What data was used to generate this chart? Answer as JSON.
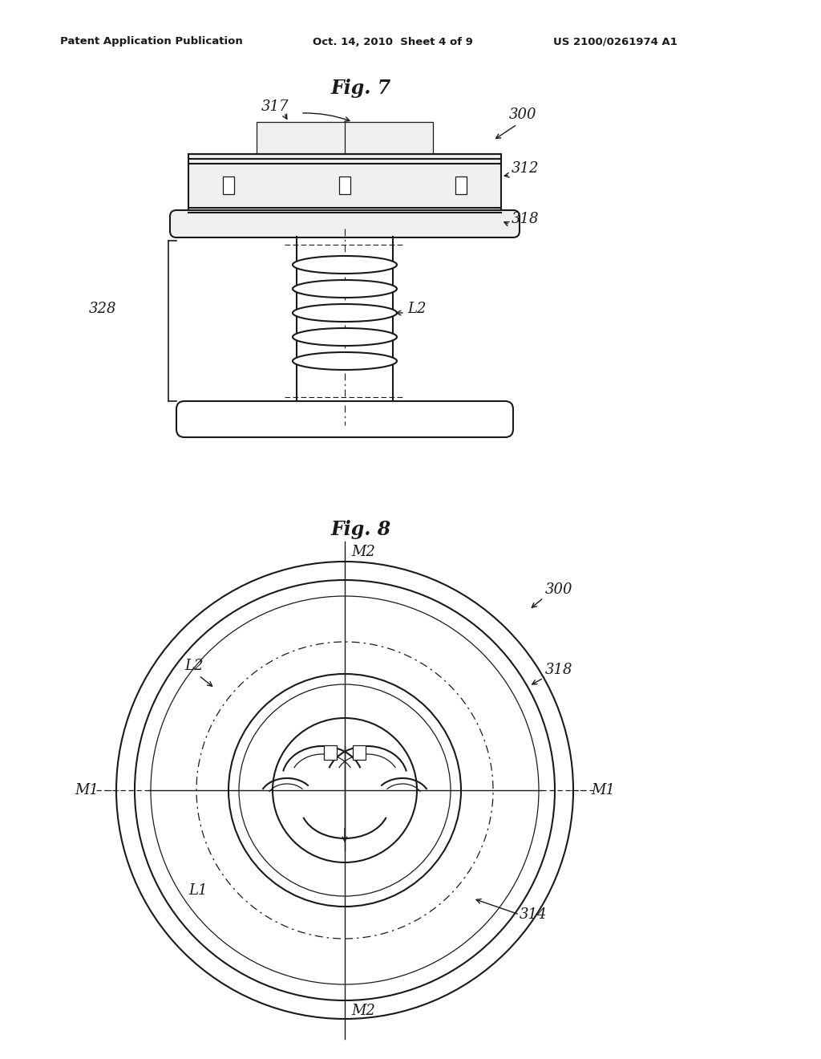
{
  "bg_color": "#ffffff",
  "line_color": "#1a1a1a",
  "header_text": "Patent Application Publication",
  "header_date": "Oct. 14, 2010  Sheet 4 of 9",
  "header_patent": "US 2100/0261974 A1",
  "fig7_title": "Fig. 7",
  "fig8_title": "Fig. 8"
}
